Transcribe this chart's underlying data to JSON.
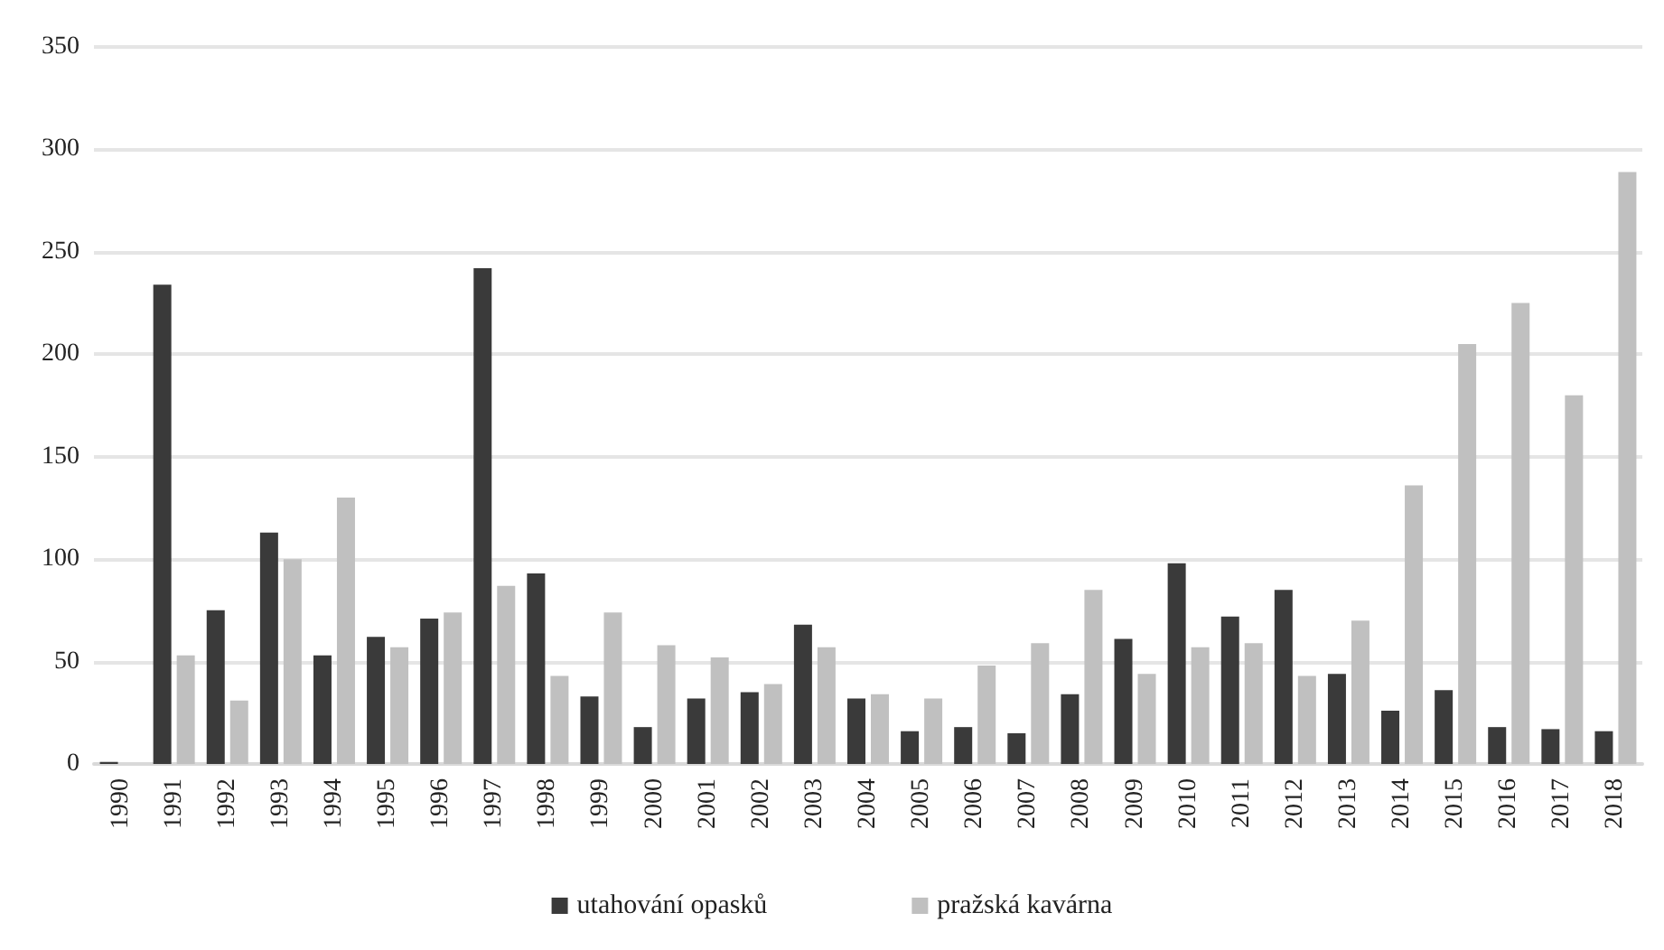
{
  "chart_data": {
    "type": "bar",
    "categories": [
      "1990",
      "1991",
      "1992",
      "1993",
      "1994",
      "1995",
      "1996",
      "1997",
      "1998",
      "1999",
      "2000",
      "2001",
      "2002",
      "2003",
      "2004",
      "2005",
      "2006",
      "2007",
      "2008",
      "2009",
      "2010",
      "2011",
      "2012",
      "2013",
      "2014",
      "2015",
      "2016",
      "2017",
      "2018"
    ],
    "series": [
      {
        "name": "utahování opasků",
        "color": "#3a3a3a",
        "values": [
          1,
          234,
          75,
          113,
          53,
          62,
          71,
          242,
          93,
          33,
          18,
          32,
          35,
          68,
          32,
          16,
          18,
          15,
          34,
          61,
          98,
          72,
          85,
          44,
          26,
          36,
          18,
          17,
          16
        ]
      },
      {
        "name": "pražská kavárna",
        "color": "#c0c0c0",
        "values": [
          0,
          53,
          31,
          100,
          130,
          57,
          74,
          87,
          43,
          74,
          58,
          52,
          39,
          57,
          34,
          32,
          48,
          59,
          85,
          44,
          57,
          59,
          43,
          70,
          136,
          205,
          225,
          180,
          289
        ]
      }
    ],
    "ylim": [
      0,
      350
    ],
    "yticks": [
      0,
      50,
      100,
      150,
      200,
      250,
      300,
      350
    ],
    "grid": "y",
    "legend": "bottom"
  }
}
